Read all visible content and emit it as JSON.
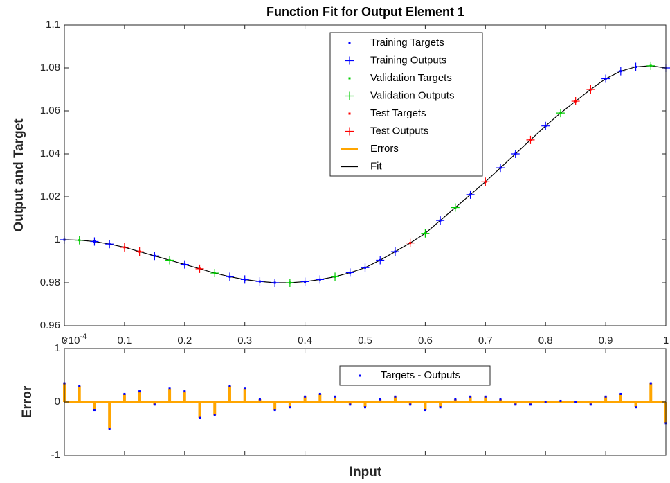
{
  "chart_data": [
    {
      "type": "line",
      "title": "Function Fit for Output Element 1",
      "y_label": "Output and Target",
      "xlim": [
        0,
        1
      ],
      "ylim": [
        0.96,
        1.1
      ],
      "xticks": [
        0,
        0.1,
        0.2,
        0.3,
        0.4,
        0.5,
        0.6,
        0.7,
        0.8,
        0.9,
        1
      ],
      "yticks": [
        0.96,
        0.98,
        1,
        1.02,
        1.04,
        1.06,
        1.08,
        1.1
      ],
      "legend": "top-right",
      "series": [
        {
          "name": "Training Targets",
          "color": "#0000ff",
          "marker": ".",
          "x": [
            0,
            0.05,
            0.075,
            0.15,
            0.2,
            0.275,
            0.3,
            0.325,
            0.35,
            0.4,
            0.425,
            0.475,
            0.5,
            0.525,
            0.55,
            0.625,
            0.675,
            0.725,
            0.75,
            0.8,
            0.9,
            0.925,
            0.95,
            1.0
          ],
          "values": [
            1.0,
            0.9992,
            0.998,
            0.9925,
            0.9885,
            0.9828,
            0.9815,
            0.9806,
            0.98,
            0.9805,
            0.9815,
            0.9847,
            0.987,
            0.9905,
            0.9945,
            1.009,
            1.021,
            1.0335,
            1.04,
            1.053,
            1.075,
            1.0785,
            1.0805,
            1.08
          ]
        },
        {
          "name": "Training Outputs",
          "color": "#0000ff",
          "marker": "+",
          "x": [
            0,
            0.05,
            0.075,
            0.15,
            0.2,
            0.275,
            0.3,
            0.325,
            0.35,
            0.4,
            0.425,
            0.475,
            0.5,
            0.525,
            0.55,
            0.625,
            0.675,
            0.725,
            0.75,
            0.8,
            0.9,
            0.925,
            0.95,
            1.0
          ],
          "values": [
            1.0,
            0.9992,
            0.998,
            0.9925,
            0.9885,
            0.9828,
            0.9815,
            0.9806,
            0.98,
            0.9805,
            0.9815,
            0.9847,
            0.987,
            0.9905,
            0.9945,
            1.009,
            1.021,
            1.0335,
            1.04,
            1.053,
            1.075,
            1.0785,
            1.0805,
            1.08
          ]
        },
        {
          "name": "Validation Targets",
          "color": "#00cc00",
          "marker": ".",
          "x": [
            0.025,
            0.175,
            0.25,
            0.375,
            0.45,
            0.6,
            0.65,
            0.825,
            0.975
          ],
          "values": [
            0.9998,
            0.9905,
            0.9845,
            0.98,
            0.9828,
            1.003,
            1.015,
            1.059,
            1.081
          ]
        },
        {
          "name": "Validation Outputs",
          "color": "#00cc00",
          "marker": "+",
          "x": [
            0.025,
            0.175,
            0.25,
            0.375,
            0.45,
            0.6,
            0.65,
            0.825,
            0.975
          ],
          "values": [
            0.9998,
            0.9905,
            0.9845,
            0.98,
            0.9828,
            1.003,
            1.015,
            1.059,
            1.081
          ]
        },
        {
          "name": "Test Targets",
          "color": "#ff0000",
          "marker": ".",
          "x": [
            0.1,
            0.125,
            0.225,
            0.575,
            0.7,
            0.775,
            0.85,
            0.875
          ],
          "values": [
            0.9965,
            0.9945,
            0.9865,
            0.9985,
            1.027,
            1.0465,
            1.0645,
            1.07
          ]
        },
        {
          "name": "Test Outputs",
          "color": "#ff0000",
          "marker": "+",
          "x": [
            0.1,
            0.125,
            0.225,
            0.575,
            0.7,
            0.775,
            0.85,
            0.875
          ],
          "values": [
            0.9965,
            0.9945,
            0.9865,
            0.9985,
            1.027,
            1.0465,
            1.0645,
            1.07
          ]
        },
        {
          "name": "Errors",
          "color": "#ffa500",
          "marker": "line"
        },
        {
          "name": "Fit",
          "color": "#000000",
          "marker": "line",
          "x": [
            0,
            0.025,
            0.05,
            0.075,
            0.1,
            0.125,
            0.15,
            0.175,
            0.2,
            0.225,
            0.25,
            0.275,
            0.3,
            0.325,
            0.35,
            0.375,
            0.4,
            0.425,
            0.45,
            0.475,
            0.5,
            0.525,
            0.55,
            0.575,
            0.6,
            0.625,
            0.65,
            0.675,
            0.7,
            0.725,
            0.75,
            0.775,
            0.8,
            0.825,
            0.85,
            0.875,
            0.9,
            0.925,
            0.95,
            0.975,
            1.0
          ],
          "values": [
            1.0,
            0.9998,
            0.9992,
            0.998,
            0.9965,
            0.9945,
            0.9925,
            0.9905,
            0.9885,
            0.9865,
            0.9845,
            0.9828,
            0.9815,
            0.9806,
            0.98,
            0.98,
            0.9805,
            0.9815,
            0.9828,
            0.9847,
            0.987,
            0.9905,
            0.9945,
            0.9985,
            1.003,
            1.009,
            1.015,
            1.021,
            1.027,
            1.0335,
            1.04,
            1.0465,
            1.053,
            1.059,
            1.0645,
            1.07,
            1.075,
            1.0785,
            1.0805,
            1.081,
            1.08
          ]
        }
      ]
    },
    {
      "type": "stem",
      "y_label": "Error",
      "x_label": "Input",
      "exponent_base": "×10",
      "exponent": "-4",
      "xlim": [
        0,
        1
      ],
      "ylim": [
        -1,
        1
      ],
      "yticks": [
        -1,
        0,
        1
      ],
      "legend": "top-center",
      "stem_color": "#ffa500",
      "series": [
        {
          "name": "Targets - Outputs",
          "color": "#0000ff",
          "x": [
            0,
            0.025,
            0.05,
            0.075,
            0.1,
            0.125,
            0.15,
            0.175,
            0.2,
            0.225,
            0.25,
            0.275,
            0.3,
            0.325,
            0.35,
            0.375,
            0.4,
            0.425,
            0.45,
            0.475,
            0.5,
            0.525,
            0.55,
            0.575,
            0.6,
            0.625,
            0.65,
            0.675,
            0.7,
            0.725,
            0.75,
            0.775,
            0.8,
            0.825,
            0.85,
            0.875,
            0.9,
            0.925,
            0.95,
            0.975,
            1.0
          ],
          "values": [
            0.35,
            0.3,
            -0.15,
            -0.5,
            0.15,
            0.2,
            -0.05,
            0.25,
            0.2,
            -0.3,
            -0.25,
            0.3,
            0.25,
            0.05,
            -0.15,
            -0.1,
            0.1,
            0.15,
            0.1,
            -0.05,
            -0.1,
            0.05,
            0.1,
            -0.05,
            -0.15,
            -0.1,
            0.05,
            0.1,
            0.1,
            0.05,
            -0.05,
            -0.05,
            0,
            0.02,
            0,
            -0.05,
            0.1,
            0.15,
            -0.1,
            0.35,
            -0.4
          ]
        }
      ]
    }
  ]
}
